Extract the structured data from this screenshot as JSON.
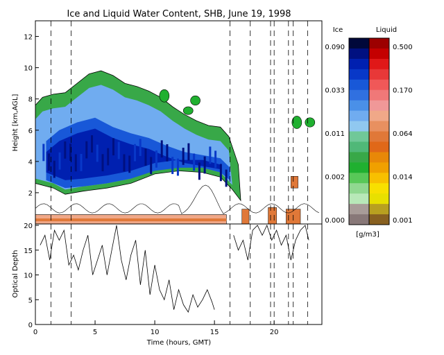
{
  "chart_data": [
    {
      "type": "heatmap",
      "title": "Ice and Liquid Water Content, SHB, June 19, 1998",
      "ylabel": "Height [km,AGL]",
      "xlim": [
        0,
        24
      ],
      "ylim": [
        0,
        13
      ],
      "yticks": [
        0,
        2,
        4,
        6,
        8,
        10,
        12
      ],
      "dashed_lines_hours": [
        1.3,
        3.0,
        16.3,
        18.0,
        19.7,
        20.0,
        21.2,
        21.6,
        22.8
      ],
      "ice_cloud_top_km": [
        [
          0,
          7.6
        ],
        [
          0.6,
          8.1
        ],
        [
          1.5,
          8.3
        ],
        [
          2.5,
          8.4
        ],
        [
          3.5,
          9.0
        ],
        [
          4.5,
          9.6
        ],
        [
          5.5,
          9.8
        ],
        [
          6.5,
          9.5
        ],
        [
          7.5,
          9.0
        ],
        [
          8.5,
          8.8
        ],
        [
          9.5,
          8.5
        ],
        [
          10.5,
          8.1
        ],
        [
          11.5,
          7.5
        ],
        [
          12.5,
          7.0
        ],
        [
          13.5,
          6.6
        ],
        [
          14.5,
          6.3
        ],
        [
          15.5,
          6.2
        ],
        [
          16.2,
          5.6
        ],
        [
          17.0,
          3.8
        ],
        [
          17.2,
          1.5
        ]
      ],
      "ice_cloud_base_km": [
        [
          0,
          2.6
        ],
        [
          1.5,
          2.3
        ],
        [
          2.5,
          1.9
        ],
        [
          4,
          2.1
        ],
        [
          6,
          2.3
        ],
        [
          8,
          2.6
        ],
        [
          10,
          3.2
        ],
        [
          12,
          3.4
        ],
        [
          14,
          3.3
        ],
        [
          15.5,
          3.0
        ],
        [
          16.5,
          2.2
        ],
        [
          17.2,
          1.5
        ]
      ],
      "ice_core_top_km": [
        [
          0.9,
          5.3
        ],
        [
          2,
          6.0
        ],
        [
          3.5,
          6.5
        ],
        [
          5,
          6.8
        ],
        [
          6.5,
          6.2
        ],
        [
          8,
          5.8
        ],
        [
          9.5,
          5.5
        ],
        [
          11,
          5.0
        ],
        [
          12.5,
          4.6
        ],
        [
          14,
          4.4
        ],
        [
          15.5,
          4.2
        ],
        [
          16.3,
          3.6
        ]
      ],
      "ice_core_base_km": [
        [
          0.9,
          2.8
        ],
        [
          2.5,
          2.3
        ],
        [
          4,
          2.4
        ],
        [
          6,
          2.6
        ],
        [
          8,
          2.9
        ],
        [
          10,
          3.4
        ],
        [
          12,
          3.6
        ],
        [
          14,
          3.6
        ],
        [
          15.5,
          3.3
        ],
        [
          16.3,
          2.8
        ]
      ],
      "liquid_layer_km": [
        [
          0,
          0.6
        ],
        [
          16,
          0.6
        ]
      ],
      "ice_colorbar": {
        "label": "Ice",
        "tick_labels": [
          "0.090",
          "0.033",
          "0.011",
          "0.002",
          "0.000"
        ]
      },
      "liquid_colorbar": {
        "label": "Liquid",
        "tick_labels": [
          "0.500",
          "0.170",
          "0.064",
          "0.014",
          "0.001"
        ]
      },
      "units": "[g/m3]",
      "ice_colors": [
        "#00083a",
        "#001080",
        "#0020b0",
        "#0838c8",
        "#1858d8",
        "#3070e0",
        "#4a90e8",
        "#70acf0",
        "#90c8f0",
        "#70c898",
        "#50b878",
        "#38a848",
        "#20b030",
        "#58c858",
        "#90d890",
        "#b8e8b8",
        "#a89c98",
        "#887878"
      ],
      "liquid_colors": [
        "#9c0000",
        "#c40000",
        "#e01818",
        "#e83838",
        "#f05858",
        "#f07878",
        "#f09898",
        "#f0a888",
        "#e89060",
        "#e07838",
        "#e06818",
        "#e88808",
        "#f0a000",
        "#f8c000",
        "#f8e000",
        "#e8e000",
        "#b8a020",
        "#886020"
      ]
    },
    {
      "type": "line",
      "ylabel": "Optical Depth",
      "xlabel": "Time (hours, GMT)",
      "xlim": [
        0,
        24
      ],
      "ylim": [
        0,
        20
      ],
      "xticks": [
        0,
        5,
        10,
        15,
        20
      ],
      "yticks": [
        0,
        5,
        10,
        15,
        20
      ],
      "series": [
        {
          "x": [
            0.4,
            0.8,
            1.2,
            1.6,
            2.0,
            2.4,
            2.8,
            3.2,
            3.6,
            4.0,
            4.4,
            4.8,
            5.2,
            5.6,
            6.0,
            6.4,
            6.8,
            7.2,
            7.6,
            8.0,
            8.4,
            8.8,
            9.2,
            9.6,
            10.0,
            10.4,
            10.8,
            11.2,
            11.6,
            12.0,
            12.4,
            12.8,
            13.2,
            13.6,
            14.0,
            14.4,
            14.8,
            15.0
          ],
          "y": [
            16,
            18,
            13,
            19,
            17,
            19,
            12,
            14,
            11,
            15,
            18,
            10,
            13,
            16,
            10,
            15,
            20,
            13,
            9,
            14,
            17,
            8,
            15,
            6,
            12,
            7,
            5,
            9,
            3,
            7,
            4,
            2.5,
            6,
            3.5,
            5,
            7,
            4.5,
            3
          ]
        },
        {
          "x": [
            16.6,
            17.0,
            17.4,
            17.8,
            18.2,
            18.6,
            19.0,
            19.4,
            19.8,
            20.2,
            20.6,
            21.0,
            21.4,
            21.8,
            22.2,
            22.6,
            22.9
          ],
          "y": [
            18,
            15,
            17,
            13,
            19,
            20,
            18,
            20,
            17,
            19,
            16,
            18,
            13,
            17,
            19,
            20,
            17
          ]
        }
      ]
    }
  ]
}
